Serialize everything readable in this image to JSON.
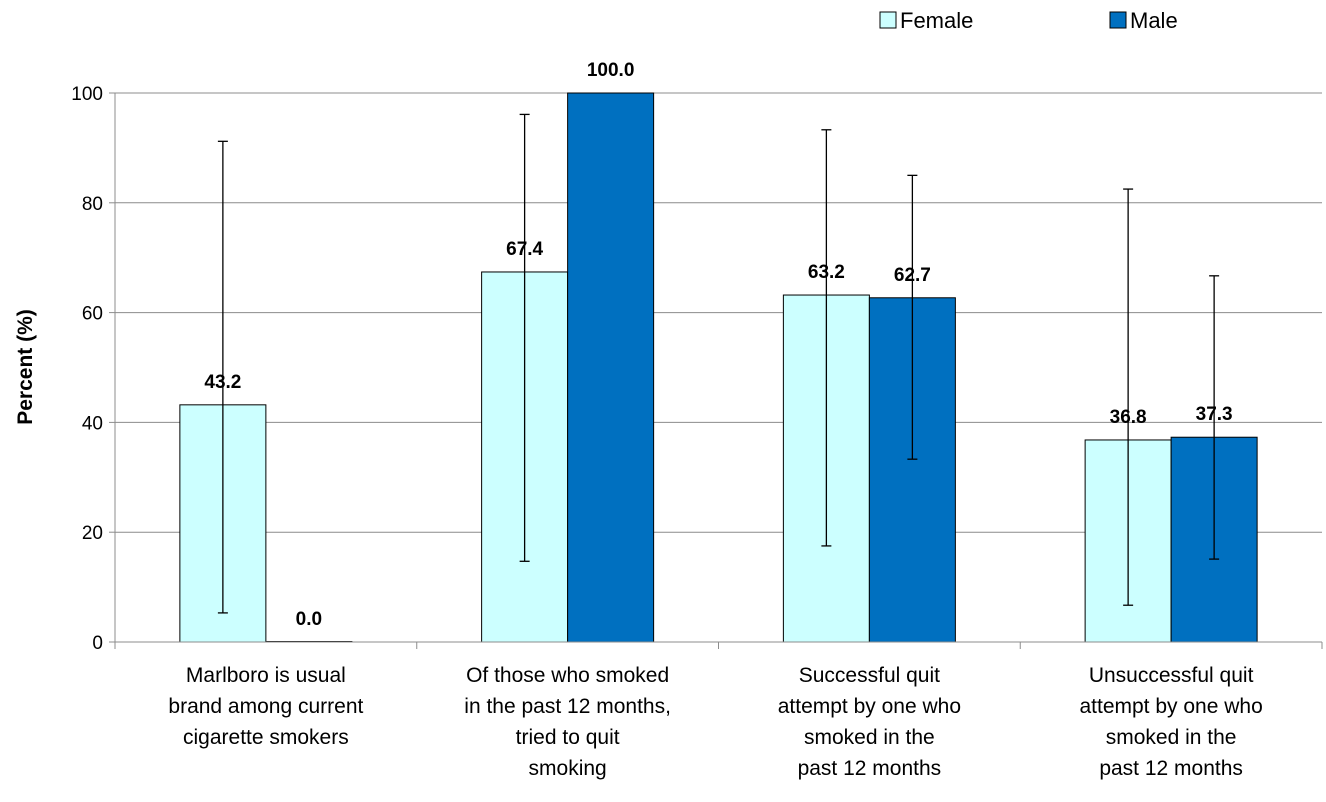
{
  "chart_data": {
    "type": "bar",
    "ylabel": "Percent (%)",
    "ylim": [
      0,
      100
    ],
    "yticks": [
      0,
      20,
      40,
      60,
      80,
      100
    ],
    "grid": true,
    "legend_position": "top-right",
    "categories": [
      [
        "Marlboro is usual",
        "brand among current",
        "cigarette smokers"
      ],
      [
        "Of those who smoked",
        "in the past 12 months,",
        "tried to quit",
        "smoking"
      ],
      [
        "Successful quit",
        "attempt by one who",
        "smoked in the",
        "past 12 months"
      ],
      [
        "Unsuccessful quit",
        "attempt by one who",
        "smoked in the",
        "past 12 months"
      ]
    ],
    "series": [
      {
        "name": "Female",
        "color": "#CCFFFF",
        "values": [
          43.2,
          67.4,
          63.2,
          36.8
        ],
        "labels": [
          "43.2",
          "67.4",
          "63.2",
          "36.8"
        ],
        "error_low": [
          5.3,
          14.7,
          17.5,
          6.7
        ],
        "error_high": [
          91.2,
          96.1,
          93.3,
          82.5
        ]
      },
      {
        "name": "Male",
        "color": "#0070C0",
        "values": [
          0.0,
          100.0,
          62.7,
          37.3
        ],
        "labels": [
          "0.0",
          "100.0",
          "62.7",
          "37.3"
        ],
        "error_low": [
          null,
          null,
          33.3,
          15.1
        ],
        "error_high": [
          null,
          null,
          85.0,
          66.7
        ]
      }
    ]
  }
}
